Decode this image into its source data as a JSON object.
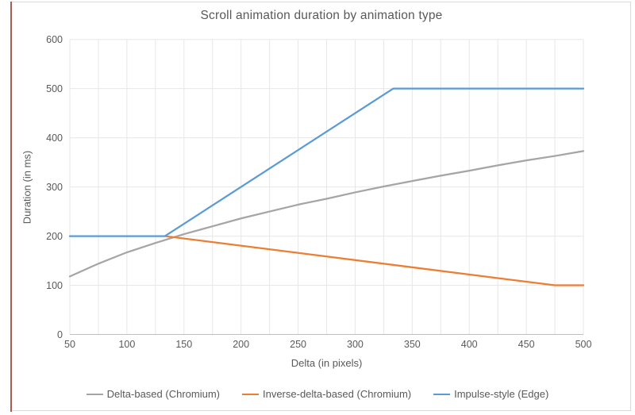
{
  "frame": {
    "border_color": "#d9d9d9",
    "left_accent_color": "#a85c52",
    "background": "#ffffff"
  },
  "text_color": "#595959",
  "chart_data": {
    "type": "line",
    "title": "Scroll animation duration by animation type",
    "xlabel": "Delta (in pixels)",
    "ylabel": "Duration (in ms)",
    "xlim": [
      50,
      500
    ],
    "ylim": [
      0,
      600
    ],
    "x_major_ticks": [
      50,
      100,
      150,
      200,
      250,
      300,
      350,
      400,
      450,
      500
    ],
    "x_minor_gridline_step": 25,
    "y_major_ticks": [
      0,
      100,
      200,
      300,
      400,
      500,
      600
    ],
    "grid": true,
    "gridline_color": "#e7e7e7",
    "axis_line_color": "#bfbfbf",
    "legend_position": "bottom",
    "series": [
      {
        "name": "Delta-based (Chromium)",
        "color": "#a5a5a5",
        "points": [
          [
            50,
            118
          ],
          [
            75,
            144
          ],
          [
            100,
            167
          ],
          [
            125,
            186
          ],
          [
            150,
            204
          ],
          [
            175,
            220
          ],
          [
            200,
            236
          ],
          [
            225,
            250
          ],
          [
            250,
            264
          ],
          [
            275,
            276
          ],
          [
            300,
            289
          ],
          [
            325,
            301
          ],
          [
            350,
            312
          ],
          [
            375,
            323
          ],
          [
            400,
            333
          ],
          [
            425,
            344
          ],
          [
            450,
            354
          ],
          [
            475,
            363
          ],
          [
            500,
            373
          ]
        ]
      },
      {
        "name": "Inverse-delta-based (Chromium)",
        "color": "#ed7d31",
        "points": [
          [
            133.3,
            200
          ],
          [
            475,
            100
          ],
          [
            500,
            100
          ]
        ]
      },
      {
        "name": "Impulse-style (Edge)",
        "color": "#5b9bd5",
        "points": [
          [
            50,
            200
          ],
          [
            133.3,
            200
          ],
          [
            333.3,
            500
          ],
          [
            500,
            500
          ]
        ]
      }
    ]
  }
}
